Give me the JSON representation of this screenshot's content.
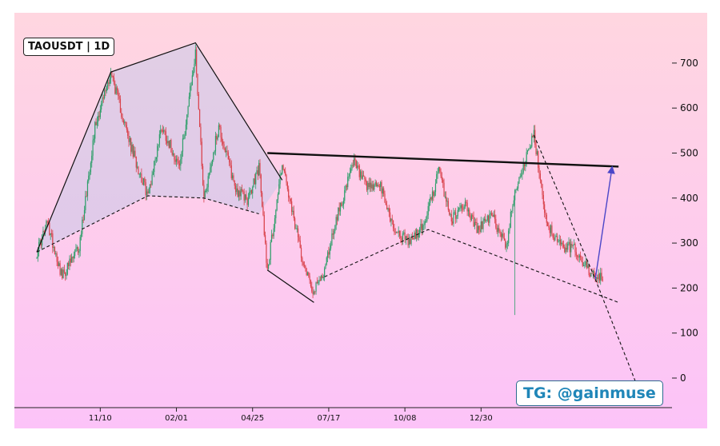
{
  "chart_data": {
    "type": "candlestick",
    "title": "TAOUSDT | 1D",
    "watermark": "TG: @gainmuse",
    "x_ticks": [
      "11/10",
      "02/01",
      "04/25",
      "07/17",
      "10/08",
      "12/30"
    ],
    "y_ticks": [
      0,
      100,
      200,
      300,
      400,
      500,
      600,
      700
    ],
    "ylim": [
      -65,
      785
    ],
    "grid": false,
    "colors": {
      "up": "#2e9e6a",
      "down": "#d9424b",
      "bg_top": "#ffd6e0",
      "bg_bottom": "#fcc3f8",
      "trend_pen": "#111111",
      "projection": "#4b46c8"
    },
    "price_path": [
      [
        0,
        280
      ],
      [
        10,
        345
      ],
      [
        24,
        225
      ],
      [
        40,
        290
      ],
      [
        55,
        560
      ],
      [
        70,
        680
      ],
      [
        88,
        520
      ],
      [
        105,
        405
      ],
      [
        118,
        560
      ],
      [
        135,
        470
      ],
      [
        150,
        720
      ],
      [
        158,
        400
      ],
      [
        172,
        560
      ],
      [
        188,
        420
      ],
      [
        200,
        395
      ],
      [
        210,
        470
      ],
      [
        218,
        240
      ],
      [
        232,
        480
      ],
      [
        240,
        380
      ],
      [
        252,
        260
      ],
      [
        262,
        190
      ],
      [
        272,
        240
      ],
      [
        282,
        345
      ],
      [
        300,
        480
      ],
      [
        312,
        420
      ],
      [
        324,
        430
      ],
      [
        338,
        330
      ],
      [
        352,
        300
      ],
      [
        366,
        340
      ],
      [
        380,
        460
      ],
      [
        392,
        350
      ],
      [
        404,
        390
      ],
      [
        416,
        330
      ],
      [
        430,
        360
      ],
      [
        444,
        295
      ],
      [
        452,
        420
      ],
      [
        460,
        470
      ],
      [
        470,
        540
      ],
      [
        482,
        345
      ],
      [
        496,
        290
      ],
      [
        508,
        290
      ],
      [
        520,
        245
      ],
      [
        528,
        220
      ],
      [
        535,
        222
      ]
    ],
    "wicks": [
      {
        "i": 158,
        "high": 440,
        "low": 390
      },
      {
        "i": 452,
        "high": 420,
        "low": 140
      }
    ],
    "overlays": [
      {
        "name": "wedge-top",
        "style": "solid",
        "points": [
          [
            "0",
            280
          ],
          [
            "70",
            680
          ],
          [
            "150",
            745
          ],
          [
            "232",
            440
          ]
        ]
      },
      {
        "name": "wedge-base",
        "style": "dashed",
        "points": [
          [
            "0",
            280
          ],
          [
            "105",
            405
          ],
          [
            "158",
            400
          ],
          [
            "210",
            365
          ]
        ]
      },
      {
        "name": "range-top",
        "style": "bold",
        "points": [
          [
            "218",
            500
          ],
          [
            "550",
            470
          ]
        ]
      },
      {
        "name": "descending-channel",
        "style": "solid",
        "points": [
          [
            "218",
            240
          ],
          [
            "262",
            168
          ]
        ]
      },
      {
        "name": "support-1",
        "style": "dashed",
        "points": [
          [
            "272",
            225
          ],
          [
            "370",
            330
          ],
          [
            "550",
            168
          ]
        ]
      },
      {
        "name": "breakdown-line",
        "style": "dashed",
        "points": [
          [
            "470",
            540
          ],
          [
            "528",
            220
          ],
          [
            "568",
            -20
          ]
        ]
      },
      {
        "name": "projection-arrow",
        "style": "arrow",
        "points": [
          [
            "528",
            220
          ],
          [
            "544",
            470
          ]
        ]
      }
    ]
  }
}
